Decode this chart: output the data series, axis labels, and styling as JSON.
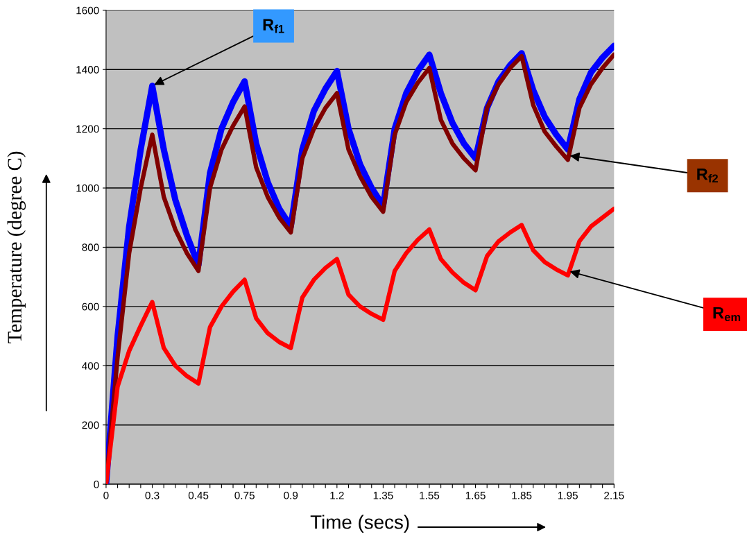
{
  "chart_data": {
    "type": "line",
    "xlabel": "Time (secs)",
    "ylabel": "Temperature (degree C)",
    "categories": [
      "0",
      null,
      null,
      null,
      "0.3",
      null,
      null,
      null,
      "0.45",
      null,
      null,
      null,
      "0.75",
      null,
      null,
      null,
      "0.9",
      null,
      null,
      null,
      "1.2",
      null,
      null,
      null,
      "1.35",
      null,
      null,
      null,
      "1.55",
      null,
      null,
      null,
      "1.65",
      null,
      null,
      null,
      "1.85",
      null,
      null,
      null,
      "1.95",
      null,
      null,
      null,
      "2.15"
    ],
    "series": [
      {
        "color": "#0000ff",
        "values": [
          0,
          500,
          870,
          1130,
          1345,
          1130,
          960,
          840,
          740,
          1050,
          1200,
          1290,
          1360,
          1150,
          1020,
          930,
          870,
          1130,
          1260,
          1335,
          1395,
          1200,
          1080,
          1000,
          940,
          1200,
          1320,
          1395,
          1450,
          1320,
          1220,
          1150,
          1100,
          1270,
          1360,
          1415,
          1455,
          1330,
          1240,
          1180,
          1130,
          1300,
          1390,
          1440,
          1480
        ]
      },
      {
        "color": "#800000",
        "values": [
          0,
          430,
          780,
          1000,
          1180,
          970,
          860,
          780,
          720,
          1000,
          1130,
          1210,
          1275,
          1070,
          970,
          900,
          850,
          1100,
          1200,
          1270,
          1320,
          1130,
          1040,
          970,
          920,
          1180,
          1290,
          1355,
          1405,
          1230,
          1150,
          1100,
          1060,
          1270,
          1350,
          1405,
          1445,
          1280,
          1190,
          1140,
          1095,
          1270,
          1350,
          1405,
          1450
        ]
      },
      {
        "color": "#ff0000",
        "values": [
          0,
          330,
          450,
          535,
          615,
          460,
          400,
          365,
          340,
          530,
          600,
          650,
          690,
          560,
          510,
          480,
          460,
          630,
          690,
          730,
          760,
          640,
          600,
          575,
          555,
          720,
          780,
          825,
          860,
          760,
          715,
          680,
          655,
          770,
          820,
          850,
          875,
          790,
          750,
          725,
          705,
          820,
          870,
          900,
          930
        ]
      }
    ],
    "ylim": [
      0,
      1600
    ],
    "yticks": [
      0,
      200,
      400,
      600,
      800,
      1000,
      1200,
      1400,
      1600
    ],
    "grid": "y",
    "legend": false,
    "annotations": [
      {
        "text": "R$_{f1}$",
        "x": "0.3",
        "y": 1345
      },
      {
        "text": "R$_{f2}$",
        "x": "1.95",
        "y": 1110
      },
      {
        "text": "R$_{em}$",
        "x": "1.95",
        "y": 720
      }
    ]
  }
}
